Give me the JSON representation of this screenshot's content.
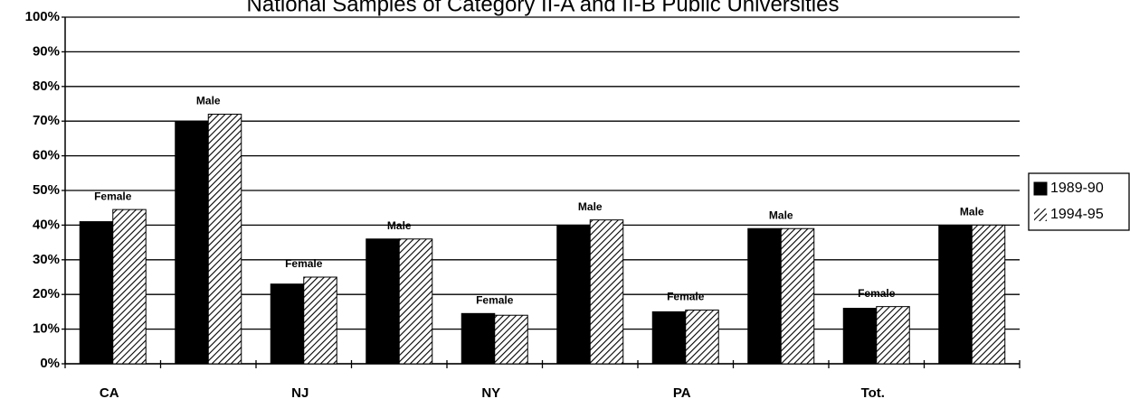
{
  "chart_data": {
    "type": "bar",
    "title": "National Samples of Category II-A and II-B Public Universities",
    "categories": [
      "CA",
      null,
      "NJ",
      null,
      "NY",
      null,
      "PA",
      null,
      "Tot.",
      null
    ],
    "annotations": [
      "Female",
      "Male",
      "Female",
      "Male",
      "Female",
      "Male",
      "Female",
      "Male",
      "Female",
      "Male"
    ],
    "series": [
      {
        "name": "1989-90",
        "color": "#000000",
        "pattern": "solid",
        "values": [
          41,
          70,
          23,
          36,
          14.5,
          40,
          15,
          39,
          16,
          40
        ]
      },
      {
        "name": "1994-95",
        "color": "#000000",
        "pattern": "hatch",
        "values": [
          44.5,
          72,
          25,
          36,
          14,
          41.5,
          15.5,
          39,
          16.5,
          40
        ]
      }
    ],
    "ylim": [
      0,
      100
    ],
    "yticks": [
      {
        "value": 0,
        "label": "0%"
      },
      {
        "value": 10,
        "label": "10%"
      },
      {
        "value": 20,
        "label": "20%"
      },
      {
        "value": 30,
        "label": "30%"
      },
      {
        "value": 40,
        "label": "40%"
      },
      {
        "value": 50,
        "label": "50%"
      },
      {
        "value": 60,
        "label": "60%"
      },
      {
        "value": 70,
        "label": "70%"
      },
      {
        "value": 80,
        "label": "80%"
      },
      {
        "value": 90,
        "label": "90%"
      },
      {
        "value": 100,
        "label": "100%"
      }
    ],
    "grid": true,
    "legend": "right"
  }
}
